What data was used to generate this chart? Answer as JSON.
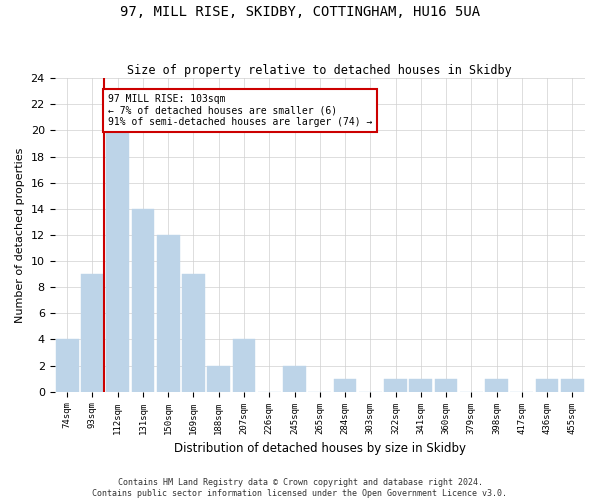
{
  "title": "97, MILL RISE, SKIDBY, COTTINGHAM, HU16 5UA",
  "subtitle": "Size of property relative to detached houses in Skidby",
  "xlabel": "Distribution of detached houses by size in Skidby",
  "ylabel": "Number of detached properties",
  "bar_labels": [
    "74sqm",
    "93sqm",
    "112sqm",
    "131sqm",
    "150sqm",
    "169sqm",
    "188sqm",
    "207sqm",
    "226sqm",
    "245sqm",
    "265sqm",
    "284sqm",
    "303sqm",
    "322sqm",
    "341sqm",
    "360sqm",
    "379sqm",
    "398sqm",
    "417sqm",
    "436sqm",
    "455sqm"
  ],
  "bar_values": [
    4,
    9,
    20,
    14,
    12,
    9,
    2,
    4,
    0,
    2,
    0,
    1,
    0,
    1,
    1,
    1,
    0,
    1,
    0,
    1,
    1
  ],
  "bar_color": "#bdd4e8",
  "bar_edge_color": "#bdd4e8",
  "vline_color": "#cc0000",
  "annotation_text": "97 MILL RISE: 103sqm\n← 7% of detached houses are smaller (6)\n91% of semi-detached houses are larger (74) →",
  "annotation_box_color": "#cc0000",
  "ylim": [
    0,
    24
  ],
  "yticks": [
    0,
    2,
    4,
    6,
    8,
    10,
    12,
    14,
    16,
    18,
    20,
    22,
    24
  ],
  "grid_color": "#d0d0d0",
  "footnote": "Contains HM Land Registry data © Crown copyright and database right 2024.\nContains public sector information licensed under the Open Government Licence v3.0.",
  "background_color": "#ffffff"
}
